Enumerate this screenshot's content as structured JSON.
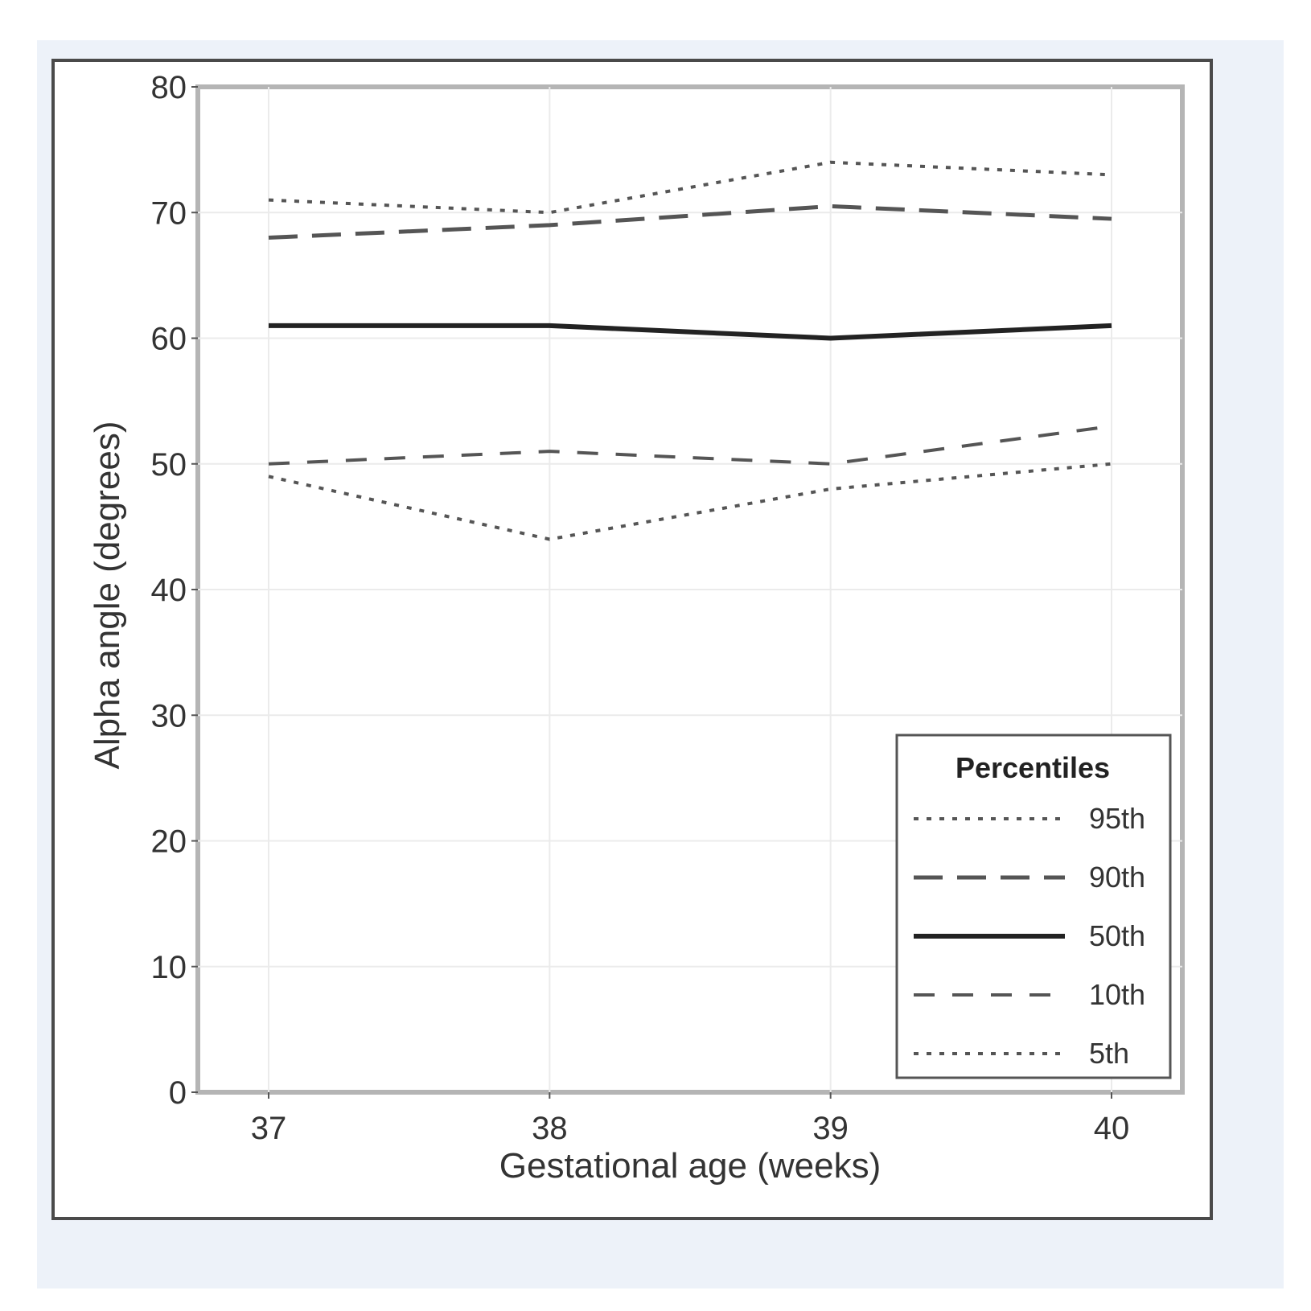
{
  "chart_data": {
    "type": "line",
    "title": "",
    "xlabel": "Gestational age (weeks)",
    "ylabel": "Alpha angle (degrees)",
    "x": [
      37,
      38,
      39,
      40
    ],
    "x_tick_labels": [
      "37",
      "38",
      "39",
      "40"
    ],
    "ylim": [
      0,
      80
    ],
    "y_ticks": [
      0,
      10,
      20,
      30,
      40,
      50,
      60,
      70,
      80
    ],
    "y_tick_labels": [
      "0",
      "10",
      "20",
      "30",
      "40",
      "50",
      "60",
      "70",
      "80"
    ],
    "grid": true,
    "legend": {
      "title": "Percentiles",
      "position": "bottom-right"
    },
    "series": [
      {
        "name": "95th",
        "values": [
          71,
          70,
          74,
          73
        ],
        "style": "dotted",
        "color": "#555555"
      },
      {
        "name": "90th",
        "values": [
          68,
          69,
          70.5,
          69.5
        ],
        "style": "long-dash",
        "color": "#555555"
      },
      {
        "name": "50th",
        "values": [
          61,
          61,
          60,
          61
        ],
        "style": "solid",
        "color": "#222222"
      },
      {
        "name": "10th",
        "values": [
          50,
          51,
          50,
          53
        ],
        "style": "dash",
        "color": "#555555"
      },
      {
        "name": "5th",
        "values": [
          49,
          44,
          48,
          50
        ],
        "style": "dotted",
        "color": "#555555"
      }
    ]
  }
}
